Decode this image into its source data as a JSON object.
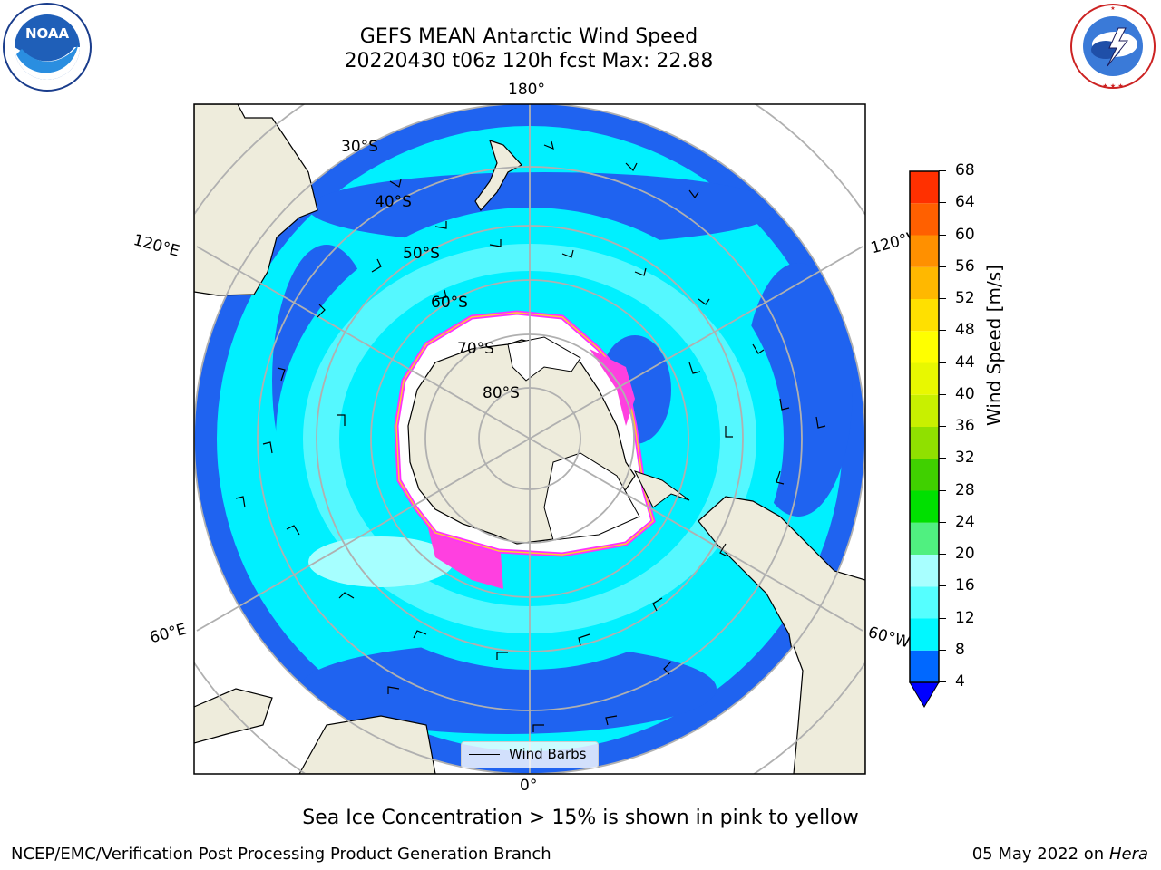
{
  "title": {
    "line1": "GEFS MEAN Antarctic Wind Speed",
    "line2": "20220430 t06z 120h fcst   Max: 22.88"
  },
  "logos": {
    "noaa": {
      "text": "NOAA",
      "ring_top": "NATIONAL OCEANIC AND ATMOSPHERIC ADMINISTRATION",
      "ring_bottom": "U.S. DEPARTMENT OF COMMERCE"
    },
    "nws": {
      "ring_text": "NATIONAL WEATHER SERVICE"
    }
  },
  "map": {
    "projection": "south polar stereographic",
    "longitude_labels": {
      "top": "180°",
      "upper_left": "120°E",
      "upper_right": "120°W",
      "lower_left": "60°E",
      "lower_right": "60°W",
      "bottom": "0°"
    },
    "latitude_labels": [
      "30°S",
      "40°S",
      "50°S",
      "60°S",
      "70°S",
      "80°S"
    ],
    "legend": {
      "label": "Wind Barbs"
    },
    "colors": {
      "land": "#eeecdc",
      "ice": "#ffffff",
      "ocean_4_8": "#1f63f0",
      "ocean_8_12": "#00f0ff",
      "ocean_12_16": "#55f8ff",
      "ocean_16_20": "#a6ffff",
      "sea_ice_edge": "#ff30ff"
    }
  },
  "colorbar": {
    "label": "Wind Speed [m/s]",
    "ticks": [
      "4",
      "8",
      "12",
      "16",
      "20",
      "24",
      "28",
      "32",
      "36",
      "40",
      "44",
      "48",
      "52",
      "56",
      "60",
      "64",
      "68"
    ],
    "colors": [
      "#0068ff",
      "#00f8ff",
      "#55ffff",
      "#a8ffff",
      "#50f080",
      "#00e000",
      "#40d000",
      "#90e000",
      "#c8f000",
      "#e8f800",
      "#ffff00",
      "#ffe000",
      "#ffb800",
      "#ff9000",
      "#ff6000",
      "#ff3000"
    ],
    "under_color": "#0000ff"
  },
  "note": "Sea Ice Concentration > 15% is shown in pink to yellow",
  "footer": {
    "left": "NCEP/EMC/Verification Post Processing Product Generation Branch",
    "date": "05 May 2022 on",
    "machine": "Hera"
  }
}
